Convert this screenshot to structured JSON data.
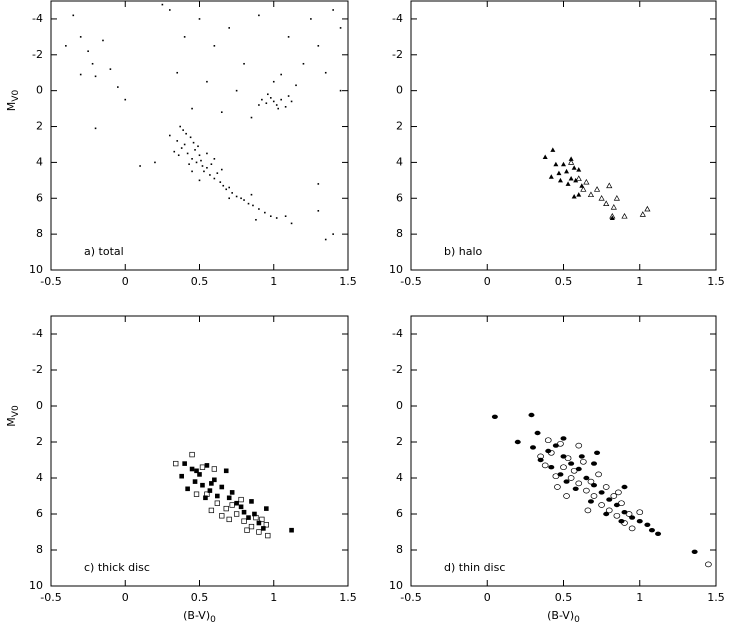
{
  "chart_data": [
    {
      "type": "scatter",
      "annotation": "a) total",
      "ylabel": "M",
      "ylabel_sub": "V0",
      "xlim": [
        -0.5,
        1.5
      ],
      "ylim": [
        10,
        -5
      ],
      "xticks": [
        -0.5,
        0,
        0.5,
        1,
        1.5
      ],
      "yticks": [
        -4,
        -2,
        0,
        2,
        4,
        6,
        8,
        10
      ],
      "series": [
        {
          "marker": "dot",
          "color": "#000000",
          "x": [
            0.35,
            0.38,
            0.4,
            0.42,
            0.44,
            0.45,
            0.47,
            0.48,
            0.5,
            0.52,
            0.36,
            0.41,
            0.43,
            0.46,
            0.49,
            0.51,
            0.53,
            0.55,
            0.57,
            0.6,
            0.62,
            0.64,
            0.66,
            0.68,
            0.7,
            0.72,
            0.75,
            0.78,
            0.8,
            0.83,
            0.86,
            0.9,
            0.94,
            0.98,
            1.02,
            1.08,
            1.12,
            0.39,
            0.37,
            0.55,
            0.58,
            0.33,
            0.45,
            0.5,
            0.65,
            0.7,
            0.85,
            0.88,
            0.6,
            0.3,
            0.92,
            0.95,
            0.98,
            1.0,
            1.02,
            1.05,
            1.08,
            1.1,
            0.96,
            1.03,
            0.9,
            1.12,
            1.0,
            1.05,
            1.15,
            0.3,
            0.5,
            0.7,
            0.9,
            1.1,
            1.3,
            1.45,
            1.2,
            1.35,
            1.45,
            0.8,
            0.6,
            0.4,
            0.35,
            0.55,
            0.75,
            0.25,
            1.4,
            1.25,
            0.65,
            0.85,
            0.45,
            -0.35,
            -0.3,
            -0.25,
            -0.22,
            -0.2,
            -0.15,
            -0.1,
            -0.05,
            -0.3,
            -0.2,
            0,
            0.1,
            -0.4,
            1.35,
            1.4,
            1.3,
            1.3,
            0.2
          ],
          "y": [
            2.8,
            3.2,
            3.0,
            3.5,
            2.6,
            3.8,
            3.3,
            4.0,
            3.6,
            4.2,
            3.6,
            2.4,
            4.1,
            2.9,
            3.1,
            3.9,
            4.5,
            4.3,
            4.7,
            4.9,
            4.6,
            5.1,
            5.3,
            5.5,
            5.4,
            5.7,
            5.9,
            6.0,
            6.1,
            6.3,
            6.4,
            6.6,
            6.8,
            7.0,
            7.1,
            7.0,
            7.4,
            2.2,
            2.0,
            3.5,
            4.1,
            3.4,
            4.5,
            5.0,
            4.4,
            6.0,
            5.8,
            7.2,
            3.8,
            2.5,
            0.5,
            0.7,
            0.4,
            0.6,
            0.8,
            0.5,
            0.9,
            0.3,
            0.2,
            1.0,
            0.8,
            0.6,
            -0.5,
            -0.9,
            -0.3,
            -4.5,
            -4.0,
            -3.5,
            -4.2,
            -3.0,
            -2.5,
            -3.5,
            -1.5,
            -1.0,
            0,
            -1.5,
            -2.5,
            -3.0,
            -1.0,
            -0.5,
            0,
            -4.8,
            -4.5,
            -4.0,
            1.2,
            1.5,
            1.0,
            -4.2,
            -3.0,
            -2.2,
            -1.5,
            -0.8,
            -2.8,
            -1.2,
            -0.2,
            -0.9,
            2.1,
            0.5,
            4.2,
            -2.5,
            8.3,
            8.0,
            5.2,
            6.7,
            4.0
          ]
        }
      ]
    },
    {
      "type": "scatter",
      "annotation": "b) halo",
      "xlim": [
        -0.5,
        1.5
      ],
      "ylim": [
        10,
        -5
      ],
      "xticks": [
        -0.5,
        0,
        0.5,
        1,
        1.5
      ],
      "yticks": [
        -4,
        -2,
        0,
        2,
        4,
        6,
        8,
        10
      ],
      "series": [
        {
          "marker": "filled-triangle",
          "color": "#000000",
          "x": [
            0.43,
            0.38,
            0.45,
            0.5,
            0.55,
            0.57,
            0.52,
            0.47,
            0.42,
            0.55,
            0.6,
            0.58,
            0.62,
            0.53,
            0.57,
            0.6,
            0.82,
            0.48
          ],
          "y": [
            3.3,
            3.7,
            4.1,
            4.1,
            3.8,
            4.3,
            4.5,
            4.6,
            4.8,
            4.9,
            4.4,
            5.0,
            5.3,
            5.2,
            5.9,
            5.8,
            7.1,
            5.0
          ]
        },
        {
          "marker": "open-triangle",
          "color": "#000000",
          "x": [
            0.55,
            0.6,
            0.63,
            0.68,
            0.72,
            0.75,
            0.78,
            0.8,
            0.83,
            0.85,
            0.82,
            0.9,
            1.02,
            1.05,
            0.65
          ],
          "y": [
            4.0,
            4.9,
            5.5,
            5.8,
            5.5,
            6.0,
            6.3,
            5.3,
            6.5,
            6.0,
            7.0,
            7.0,
            6.9,
            6.6,
            5.1
          ]
        }
      ]
    },
    {
      "type": "scatter",
      "annotation": "c) thick disc",
      "ylabel": "M",
      "ylabel_sub": "V0",
      "xlabel": "(B-V)",
      "xlabel_sub": "0",
      "xlim": [
        -0.5,
        1.5
      ],
      "ylim": [
        10,
        -5
      ],
      "xticks": [
        -0.5,
        0,
        0.5,
        1,
        1.5
      ],
      "yticks": [
        -4,
        -2,
        0,
        2,
        4,
        6,
        8,
        10
      ],
      "series": [
        {
          "marker": "filled-square",
          "color": "#000000",
          "x": [
            0.38,
            0.4,
            0.45,
            0.47,
            0.5,
            0.52,
            0.55,
            0.57,
            0.6,
            0.62,
            0.65,
            0.68,
            0.7,
            0.72,
            0.75,
            0.78,
            0.8,
            0.83,
            0.87,
            0.9,
            0.93,
            1.12,
            0.42,
            0.54,
            0.58,
            0.48,
            0.85,
            0.95
          ],
          "y": [
            3.9,
            3.2,
            3.5,
            4.2,
            3.8,
            4.4,
            3.3,
            4.7,
            4.1,
            5.0,
            4.5,
            3.6,
            5.1,
            4.8,
            5.4,
            5.6,
            5.9,
            6.2,
            6.0,
            6.5,
            6.8,
            6.9,
            4.6,
            5.1,
            4.3,
            3.6,
            5.3,
            5.7
          ]
        },
        {
          "marker": "open-square",
          "color": "#000000",
          "x": [
            0.34,
            0.45,
            0.52,
            0.6,
            0.55,
            0.62,
            0.65,
            0.68,
            0.72,
            0.75,
            0.8,
            0.82,
            0.85,
            0.88,
            0.92,
            0.95,
            0.96,
            0.9,
            0.7,
            0.58,
            0.48,
            0.78
          ],
          "y": [
            3.2,
            2.7,
            3.4,
            3.5,
            4.9,
            5.4,
            6.1,
            5.7,
            5.5,
            6.0,
            6.4,
            6.9,
            6.7,
            6.2,
            6.3,
            6.6,
            7.2,
            7.0,
            6.3,
            5.8,
            4.9,
            5.2
          ]
        }
      ]
    },
    {
      "type": "scatter",
      "annotation": "d) thin disc",
      "xlabel": "(B-V)",
      "xlabel_sub": "0",
      "xlim": [
        -0.5,
        1.5
      ],
      "ylim": [
        10,
        -5
      ],
      "xticks": [
        -0.5,
        0,
        0.5,
        1,
        1.5
      ],
      "yticks": [
        -4,
        -2,
        0,
        2,
        4,
        6,
        8,
        10
      ],
      "series": [
        {
          "marker": "filled-circle",
          "color": "#000000",
          "x": [
            0.05,
            0.29,
            0.2,
            0.3,
            0.35,
            0.4,
            0.45,
            0.5,
            0.55,
            0.6,
            0.48,
            0.52,
            0.65,
            0.7,
            0.75,
            0.8,
            0.85,
            0.9,
            0.95,
            1.0,
            1.05,
            1.08,
            1.12,
            1.36,
            0.42,
            0.58,
            0.62,
            0.68,
            0.78,
            0.88,
            0.7,
            0.33,
            0.5,
            0.72,
            0.9
          ],
          "y": [
            0.6,
            0.5,
            2.0,
            2.3,
            3.0,
            2.5,
            2.2,
            2.8,
            3.2,
            3.5,
            3.8,
            4.2,
            4.0,
            4.4,
            4.8,
            5.2,
            5.5,
            5.9,
            6.2,
            6.4,
            6.6,
            6.9,
            7.1,
            8.1,
            3.4,
            4.6,
            2.8,
            5.3,
            6.0,
            6.4,
            3.2,
            1.5,
            1.8,
            2.6,
            4.5
          ]
        },
        {
          "marker": "open-circle",
          "color": "#000000",
          "x": [
            1.45,
            0.35,
            0.38,
            0.42,
            0.45,
            0.48,
            0.5,
            0.53,
            0.55,
            0.57,
            0.6,
            0.63,
            0.65,
            0.68,
            0.7,
            0.73,
            0.75,
            0.78,
            0.8,
            0.83,
            0.85,
            0.88,
            0.9,
            0.93,
            0.95,
            0.4,
            0.6,
            0.52,
            0.66,
            0.46,
            0.86,
            1.0
          ],
          "y": [
            8.8,
            2.8,
            3.3,
            2.6,
            3.9,
            2.1,
            3.4,
            2.9,
            4.0,
            3.6,
            4.3,
            3.1,
            4.7,
            4.2,
            5.0,
            3.8,
            5.5,
            4.5,
            5.8,
            5.0,
            6.1,
            5.4,
            6.5,
            6.0,
            6.8,
            1.9,
            2.2,
            5.0,
            5.8,
            4.5,
            4.8,
            5.9
          ]
        }
      ]
    }
  ]
}
